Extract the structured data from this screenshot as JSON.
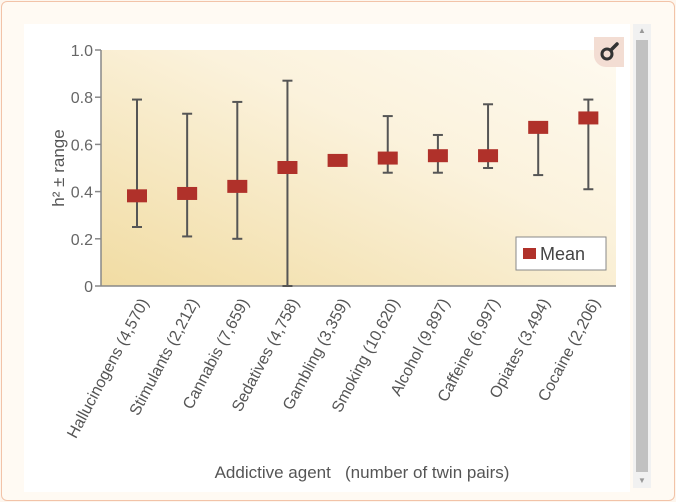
{
  "chart_data": {
    "type": "scatter",
    "ylabel": "h² ± range",
    "xlabel": "Addictive agent   (number of twin pairs)",
    "ylim": [
      0,
      1.0
    ],
    "yticks": [
      "0",
      "0.2",
      "0.4",
      "0.6",
      "0.8",
      "1.0"
    ],
    "legend": {
      "label": "Mean",
      "placement": "bottom-right"
    },
    "categories": [
      "Hallucinogens (4,570)",
      "Stimulants (2,212)",
      "Cannabis (7,659)",
      "Sedatives (4,758)",
      "Gambling (3,359)",
      "Smoking (10,620)",
      "Alcohol (9,897)",
      "Caffeine (6,997)",
      "Opiates (3,494)",
      "Cocaine (2,206)"
    ],
    "series": [
      {
        "name": "Mean",
        "values": [
          0.38,
          0.39,
          0.42,
          0.5,
          0.53,
          0.54,
          0.55,
          0.55,
          0.67,
          0.71
        ]
      },
      {
        "name": "Range low",
        "values": [
          0.25,
          0.21,
          0.2,
          0.0,
          null,
          0.48,
          0.48,
          0.5,
          0.47,
          0.41
        ]
      },
      {
        "name": "Range high",
        "values": [
          0.79,
          0.73,
          0.78,
          0.87,
          null,
          0.72,
          0.64,
          0.77,
          0.67,
          0.79
        ]
      }
    ],
    "colors": {
      "mean": "#b0312a",
      "bar": "#555555"
    }
  },
  "ui": {
    "zoom_icon": "magnify-icon",
    "scroll_up": "▲",
    "scroll_down": "▼"
  }
}
